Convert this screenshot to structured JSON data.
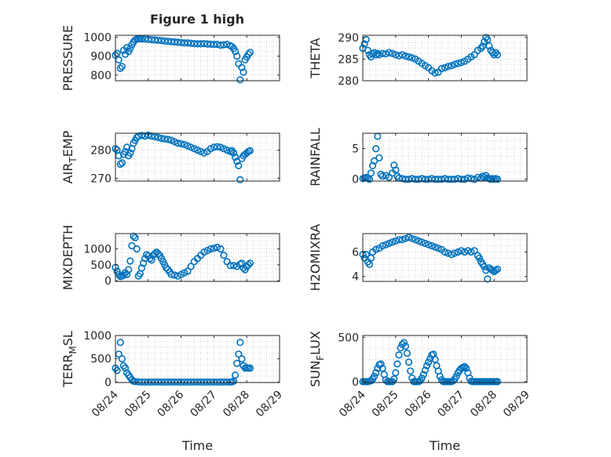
{
  "figure": {
    "title": "Figure 1 high",
    "background": "#ffffff",
    "marker_color": "#0072BD",
    "axis_color": "#262626",
    "grid_color": "#c8c8c8"
  },
  "chart_data": [
    {
      "type": "scatter",
      "ylabel": "PRESSURE",
      "title": "Figure 1 high",
      "xlim": [
        0,
        5
      ],
      "ylim": [
        770,
        1010
      ],
      "yticks": [
        800,
        900,
        1000
      ],
      "xticks": [
        0,
        1,
        2,
        3,
        4,
        5
      ],
      "xticklabels": [],
      "grid": true,
      "x": [
        0.0,
        0.05,
        0.1,
        0.15,
        0.2,
        0.25,
        0.3,
        0.35,
        0.4,
        0.45,
        0.5,
        0.55,
        0.6,
        0.65,
        0.7,
        0.75,
        0.8,
        0.9,
        1.0,
        1.1,
        1.2,
        1.3,
        1.4,
        1.5,
        1.6,
        1.7,
        1.8,
        1.9,
        2.0,
        2.1,
        2.2,
        2.3,
        2.4,
        2.5,
        2.6,
        2.7,
        2.8,
        2.9,
        3.0,
        3.1,
        3.2,
        3.3,
        3.4,
        3.5,
        3.55,
        3.6,
        3.65,
        3.7,
        3.75,
        3.8,
        3.85,
        3.9,
        3.95,
        4.0,
        4.05,
        4.1
      ],
      "y": [
        905,
        915,
        880,
        835,
        845,
        930,
        910,
        945,
        925,
        940,
        960,
        975,
        985,
        990,
        990,
        992,
        990,
        990,
        988,
        987,
        985,
        984,
        982,
        980,
        978,
        976,
        975,
        973,
        972,
        970,
        970,
        968,
        966,
        965,
        965,
        966,
        964,
        963,
        962,
        962,
        958,
        960,
        962,
        955,
        950,
        940,
        925,
        900,
        860,
        775,
        840,
        815,
        880,
        895,
        910,
        920
      ]
    },
    {
      "type": "scatter",
      "ylabel": "THETA",
      "xlim": [
        0,
        5
      ],
      "ylim": [
        280,
        290.5
      ],
      "yticks": [
        280,
        285,
        290
      ],
      "xticks": [
        0,
        1,
        2,
        3,
        4,
        5
      ],
      "xticklabels": [],
      "grid": true,
      "x": [
        0.0,
        0.05,
        0.1,
        0.15,
        0.2,
        0.25,
        0.3,
        0.35,
        0.4,
        0.45,
        0.5,
        0.6,
        0.7,
        0.8,
        0.9,
        1.0,
        1.1,
        1.2,
        1.3,
        1.4,
        1.5,
        1.6,
        1.7,
        1.8,
        1.9,
        2.0,
        2.1,
        2.2,
        2.3,
        2.4,
        2.5,
        2.6,
        2.7,
        2.8,
        2.9,
        3.0,
        3.1,
        3.2,
        3.3,
        3.4,
        3.5,
        3.6,
        3.65,
        3.7,
        3.75,
        3.8,
        3.85,
        3.9,
        3.95,
        4.0,
        4.05,
        4.1
      ],
      "y": [
        287.5,
        288.5,
        289.5,
        287.0,
        286.0,
        285.5,
        286.2,
        286.5,
        286.0,
        286.3,
        286.0,
        286.3,
        286.2,
        286.5,
        286.3,
        286.0,
        285.8,
        286.0,
        285.7,
        285.5,
        285.3,
        285.0,
        284.5,
        284.0,
        283.5,
        283.0,
        282.3,
        281.8,
        282.0,
        282.8,
        283.0,
        283.3,
        283.5,
        283.8,
        284.0,
        284.2,
        284.5,
        285.0,
        285.5,
        286.0,
        287.0,
        287.5,
        288.0,
        289.0,
        290.0,
        289.5,
        288.0,
        287.0,
        286.5,
        286.0,
        286.5,
        286.0
      ]
    },
    {
      "type": "scatter",
      "ylabel": "AIR_TEMP",
      "ylabel_parts": [
        "AIR",
        "T",
        "EMP"
      ],
      "xlim": [
        0,
        5
      ],
      "ylim": [
        269,
        286
      ],
      "yticks": [
        270,
        280
      ],
      "xticks": [
        0,
        1,
        2,
        3,
        4,
        5
      ],
      "xticklabels": [],
      "grid": true,
      "x": [
        0.0,
        0.05,
        0.1,
        0.15,
        0.2,
        0.25,
        0.3,
        0.35,
        0.4,
        0.45,
        0.5,
        0.55,
        0.6,
        0.65,
        0.7,
        0.8,
        0.9,
        1.0,
        1.1,
        1.2,
        1.3,
        1.4,
        1.5,
        1.6,
        1.7,
        1.8,
        1.9,
        2.0,
        2.1,
        2.2,
        2.3,
        2.4,
        2.5,
        2.6,
        2.7,
        2.8,
        2.9,
        3.0,
        3.1,
        3.2,
        3.3,
        3.4,
        3.5,
        3.55,
        3.6,
        3.65,
        3.7,
        3.75,
        3.8,
        3.85,
        3.9,
        3.95,
        4.0,
        4.05,
        4.1
      ],
      "y": [
        280.5,
        280.0,
        278.0,
        275.0,
        275.5,
        278.5,
        279.5,
        281.0,
        278.0,
        279.0,
        280.5,
        282.5,
        283.5,
        284.5,
        285.0,
        285.2,
        285.0,
        285.3,
        285.0,
        284.8,
        284.5,
        284.2,
        284.0,
        283.8,
        283.5,
        283.0,
        282.5,
        282.3,
        282.0,
        281.5,
        281.0,
        280.5,
        280.0,
        279.5,
        279.0,
        279.5,
        280.5,
        281.0,
        281.2,
        281.0,
        280.5,
        280.0,
        279.5,
        279.8,
        279.0,
        277.5,
        276.0,
        274.5,
        269.5,
        277.0,
        278.0,
        278.5,
        279.0,
        279.5,
        279.8
      ]
    },
    {
      "type": "scatter",
      "ylabel": "RAINFALL",
      "xlim": [
        0,
        5
      ],
      "ylim": [
        -0.3,
        7.5
      ],
      "yticks": [
        0,
        5
      ],
      "xticks": [
        0,
        1,
        2,
        3,
        4,
        5
      ],
      "xticklabels": [],
      "grid": true,
      "x": [
        0.0,
        0.05,
        0.1,
        0.15,
        0.2,
        0.25,
        0.3,
        0.35,
        0.4,
        0.45,
        0.5,
        0.55,
        0.6,
        0.7,
        0.8,
        0.9,
        0.95,
        1.0,
        1.05,
        1.1,
        1.2,
        1.3,
        1.4,
        1.5,
        1.6,
        1.7,
        1.8,
        1.9,
        2.0,
        2.1,
        2.2,
        2.3,
        2.4,
        2.5,
        2.6,
        2.7,
        2.8,
        2.9,
        3.0,
        3.1,
        3.2,
        3.3,
        3.4,
        3.5,
        3.6,
        3.65,
        3.7,
        3.75,
        3.8,
        3.85,
        3.9,
        3.95,
        4.0,
        4.05,
        4.1
      ],
      "y": [
        0.1,
        0.2,
        0.3,
        0.2,
        0.0,
        1.0,
        2.2,
        3.0,
        5.0,
        7.0,
        3.5,
        0.8,
        0.5,
        0.6,
        0.3,
        1.0,
        2.3,
        1.5,
        0.5,
        0.2,
        0.1,
        0.0,
        0.0,
        0.1,
        0.0,
        0.0,
        0.1,
        0.0,
        0.0,
        0.1,
        0.0,
        0.0,
        0.0,
        0.1,
        0.0,
        0.0,
        0.0,
        0.1,
        0.0,
        0.0,
        0.2,
        0.1,
        0.0,
        0.3,
        0.2,
        0.5,
        0.3,
        0.6,
        0.2,
        0.1,
        0.0,
        0.1,
        0.0,
        0.1,
        0.0
      ]
    },
    {
      "type": "scatter",
      "ylabel": "MIXDEPTH",
      "xlim": [
        0,
        5
      ],
      "ylim": [
        -20,
        1480
      ],
      "yticks": [
        0,
        500,
        1000
      ],
      "xticks": [
        0,
        1,
        2,
        3,
        4,
        5
      ],
      "xticklabels": [],
      "grid": true,
      "x": [
        0.0,
        0.05,
        0.1,
        0.15,
        0.2,
        0.25,
        0.3,
        0.35,
        0.4,
        0.45,
        0.5,
        0.55,
        0.6,
        0.65,
        0.7,
        0.75,
        0.8,
        0.85,
        0.9,
        0.95,
        1.0,
        1.05,
        1.1,
        1.15,
        1.2,
        1.25,
        1.3,
        1.35,
        1.4,
        1.45,
        1.5,
        1.55,
        1.6,
        1.65,
        1.7,
        1.8,
        1.9,
        2.0,
        2.1,
        2.2,
        2.3,
        2.4,
        2.5,
        2.6,
        2.7,
        2.8,
        2.9,
        3.0,
        3.1,
        3.2,
        3.3,
        3.4,
        3.5,
        3.6,
        3.7,
        3.8,
        3.85,
        3.9,
        3.95,
        4.0,
        4.05,
        4.1
      ],
      "y": [
        420,
        300,
        200,
        130,
        150,
        180,
        250,
        200,
        350,
        620,
        1100,
        1400,
        1350,
        1000,
        150,
        220,
        400,
        550,
        700,
        820,
        780,
        700,
        650,
        800,
        850,
        900,
        850,
        800,
        700,
        600,
        500,
        400,
        350,
        280,
        200,
        180,
        150,
        200,
        250,
        300,
        450,
        600,
        700,
        800,
        900,
        950,
        1000,
        1020,
        1050,
        1000,
        800,
        600,
        480,
        480,
        450,
        520,
        550,
        400,
        350,
        450,
        500,
        550
      ]
    },
    {
      "type": "scatter",
      "ylabel": "H2OMIXRA",
      "xlim": [
        0,
        5
      ],
      "ylim": [
        3.6,
        7.5
      ],
      "yticks": [
        4,
        6
      ],
      "xticks": [
        0,
        1,
        2,
        3,
        4,
        5
      ],
      "xticklabels": [],
      "grid": true,
      "x": [
        0.0,
        0.05,
        0.1,
        0.15,
        0.2,
        0.25,
        0.3,
        0.4,
        0.5,
        0.6,
        0.7,
        0.8,
        0.9,
        1.0,
        1.1,
        1.2,
        1.3,
        1.4,
        1.5,
        1.6,
        1.7,
        1.8,
        1.9,
        2.0,
        2.1,
        2.2,
        2.3,
        2.4,
        2.5,
        2.6,
        2.7,
        2.8,
        2.9,
        3.0,
        3.1,
        3.2,
        3.3,
        3.4,
        3.5,
        3.55,
        3.6,
        3.65,
        3.7,
        3.75,
        3.8,
        3.85,
        3.9,
        3.95,
        4.0,
        4.05,
        4.1
      ],
      "y": [
        5.8,
        5.5,
        5.8,
        5.2,
        5.0,
        5.5,
        6.0,
        6.2,
        6.3,
        6.5,
        6.6,
        6.7,
        6.8,
        6.9,
        7.0,
        7.0,
        7.1,
        7.2,
        7.1,
        7.0,
        6.9,
        6.8,
        6.7,
        6.6,
        6.5,
        6.4,
        6.3,
        6.2,
        6.0,
        5.9,
        5.8,
        5.9,
        6.0,
        6.1,
        6.0,
        6.1,
        6.0,
        6.1,
        5.7,
        5.5,
        5.2,
        5.0,
        4.8,
        4.5,
        3.8,
        4.7,
        4.6,
        4.5,
        4.4,
        4.5,
        4.6
      ]
    },
    {
      "type": "scatter",
      "ylabel": "TERR_MSL",
      "ylabel_parts": [
        "TERR",
        "M",
        "SL"
      ],
      "xlim": [
        0,
        5
      ],
      "ylim": [
        -10,
        1000
      ],
      "yticks": [
        0,
        500,
        1000
      ],
      "xticks": [
        0,
        1,
        2,
        3,
        4,
        5
      ],
      "xticklabels": [
        "08/24",
        "08/25",
        "08/26",
        "08/27",
        "08/28",
        "08/29"
      ],
      "xlabel": "Time",
      "grid": true,
      "x": [
        0.0,
        0.05,
        0.1,
        0.15,
        0.2,
        0.25,
        0.3,
        0.35,
        0.4,
        0.45,
        0.5,
        0.55,
        0.6,
        0.7,
        0.8,
        0.9,
        1.0,
        1.1,
        1.2,
        1.3,
        1.4,
        1.5,
        1.6,
        1.7,
        1.8,
        1.9,
        2.0,
        2.1,
        2.2,
        2.3,
        2.4,
        2.5,
        2.6,
        2.7,
        2.8,
        2.9,
        3.0,
        3.1,
        3.2,
        3.3,
        3.4,
        3.5,
        3.55,
        3.6,
        3.65,
        3.7,
        3.75,
        3.8,
        3.85,
        3.9,
        3.95,
        4.0,
        4.05,
        4.1
      ],
      "y": [
        300,
        250,
        600,
        850,
        500,
        350,
        300,
        200,
        150,
        100,
        50,
        20,
        10,
        5,
        0,
        0,
        0,
        0,
        0,
        0,
        0,
        0,
        0,
        0,
        0,
        0,
        0,
        0,
        0,
        0,
        0,
        0,
        0,
        0,
        0,
        0,
        0,
        0,
        0,
        0,
        0,
        0,
        5,
        20,
        150,
        400,
        600,
        850,
        500,
        350,
        300,
        310,
        300,
        300
      ]
    },
    {
      "type": "scatter",
      "ylabel": "SUN_FLUX",
      "ylabel_parts": [
        "SUN",
        "F",
        "LUX"
      ],
      "xlim": [
        0,
        5
      ],
      "ylim": [
        -10,
        520
      ],
      "yticks": [
        0,
        500
      ],
      "xticks": [
        0,
        1,
        2,
        3,
        4,
        5
      ],
      "xticklabels": [
        "08/24",
        "08/25",
        "08/26",
        "08/27",
        "08/28",
        "08/29"
      ],
      "xlabel": "Time",
      "grid": true,
      "x": [
        0.0,
        0.05,
        0.1,
        0.15,
        0.2,
        0.25,
        0.3,
        0.35,
        0.4,
        0.45,
        0.5,
        0.55,
        0.6,
        0.65,
        0.7,
        0.75,
        0.8,
        0.85,
        0.9,
        0.95,
        1.0,
        1.05,
        1.1,
        1.15,
        1.2,
        1.25,
        1.3,
        1.35,
        1.4,
        1.45,
        1.5,
        1.55,
        1.6,
        1.65,
        1.7,
        1.75,
        1.8,
        1.85,
        1.9,
        1.95,
        2.0,
        2.05,
        2.1,
        2.15,
        2.2,
        2.25,
        2.3,
        2.35,
        2.4,
        2.45,
        2.5,
        2.55,
        2.6,
        2.65,
        2.7,
        2.75,
        2.8,
        2.85,
        2.9,
        2.95,
        3.0,
        3.05,
        3.1,
        3.15,
        3.2,
        3.25,
        3.3,
        3.35,
        3.4,
        3.45,
        3.5,
        3.55,
        3.6,
        3.65,
        3.7,
        3.75,
        3.8,
        3.85,
        3.9,
        3.95,
        4.0,
        4.05,
        4.1
      ],
      "y": [
        0,
        0,
        0,
        0,
        5,
        10,
        30,
        60,
        100,
        150,
        190,
        200,
        150,
        80,
        20,
        0,
        0,
        0,
        0,
        30,
        100,
        200,
        300,
        380,
        420,
        440,
        400,
        320,
        220,
        120,
        40,
        0,
        0,
        0,
        0,
        10,
        40,
        80,
        130,
        180,
        220,
        260,
        300,
        310,
        250,
        180,
        120,
        60,
        20,
        0,
        0,
        0,
        0,
        0,
        0,
        10,
        30,
        60,
        100,
        130,
        150,
        160,
        170,
        150,
        100,
        40,
        5,
        0,
        0,
        0,
        0,
        0,
        0,
        0,
        0,
        0,
        0,
        0,
        0,
        0,
        0,
        0,
        0
      ]
    }
  ]
}
